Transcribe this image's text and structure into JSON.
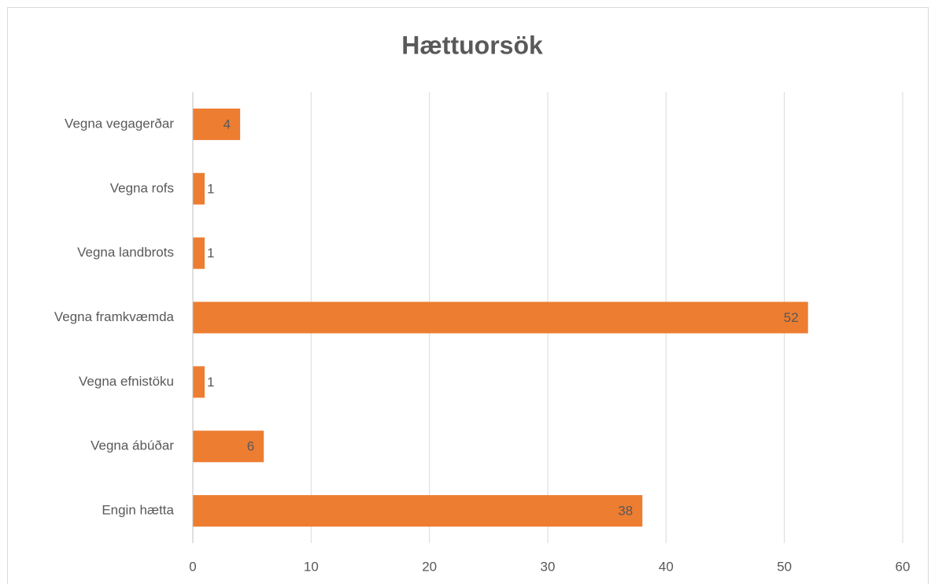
{
  "chart_data": {
    "type": "hbar",
    "title": "Hættuorsök",
    "categories": [
      "Vegna vegagerðar",
      "Vegna rofs",
      "Vegna landbrots",
      "Vegna framkvæmda",
      "Vegna efnistöku",
      "Vegna ábúðar",
      "Engin hætta"
    ],
    "values": [
      4,
      1,
      1,
      52,
      1,
      6,
      38
    ],
    "color": "#ed7d31",
    "xlim": [
      0,
      60
    ],
    "xticks": [
      0,
      10,
      20,
      30,
      40,
      50,
      60
    ],
    "grid": true
  }
}
